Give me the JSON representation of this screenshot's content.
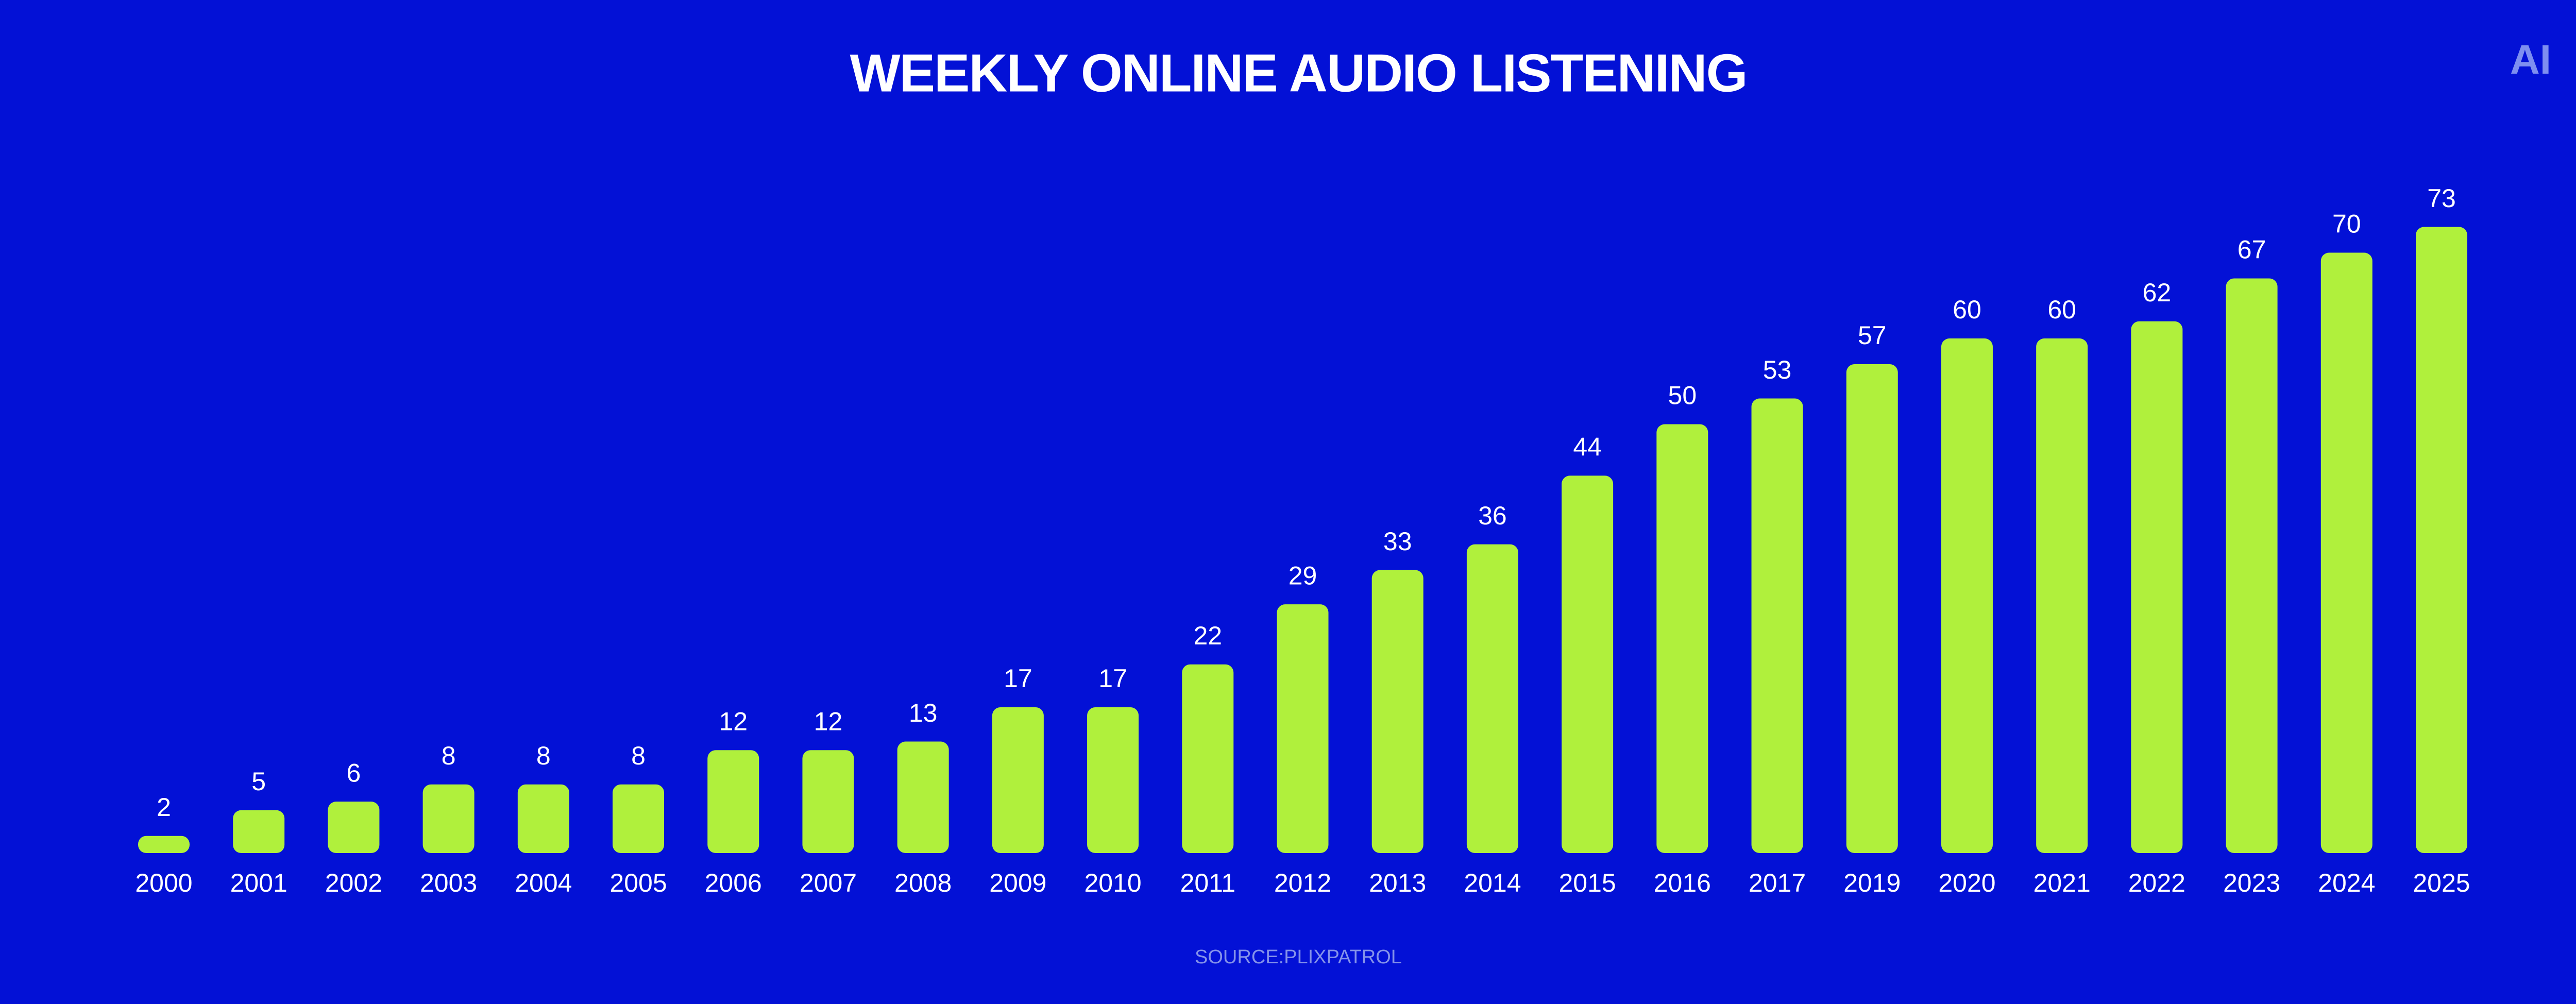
{
  "chart_data": {
    "type": "bar",
    "title": "WEEKLY ONLINE AUDIO LISTENING",
    "logo": "AI",
    "source": "SOURCE:PLIXPATROL",
    "categories": [
      "2000",
      "2001",
      "2002",
      "2003",
      "2004",
      "2005",
      "2006",
      "2007",
      "2008",
      "2009",
      "2010",
      "2011",
      "2012",
      "2013",
      "2014",
      "2015",
      "2016",
      "2017",
      "2019",
      "2020",
      "2021",
      "2022",
      "2023",
      "2024",
      "2025"
    ],
    "values": [
      2,
      5,
      6,
      8,
      8,
      8,
      12,
      12,
      13,
      17,
      17,
      22,
      29,
      33,
      36,
      44,
      50,
      53,
      57,
      60,
      60,
      62,
      67,
      70,
      73
    ],
    "color": "#b0f03c"
  }
}
